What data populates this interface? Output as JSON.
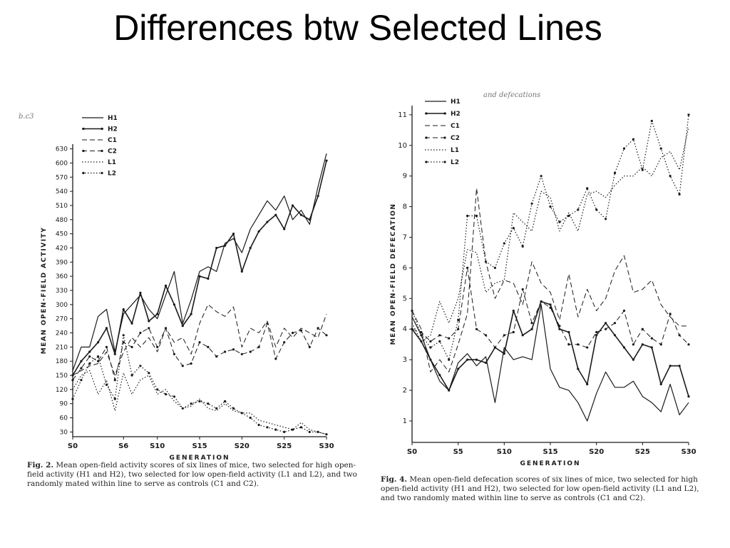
{
  "slide": {
    "title": "Differences btw Selected Lines"
  },
  "left_figure": {
    "caption_label": "Fig. 2.",
    "caption_text": "Mean open-field activity scores of six lines of mice, two selected for high open-field activity (H1 and H2), two selected for low open-field activity (L1 and L2), and two randomly mated within line to serve as controls (C1 and C2).",
    "scan_note": "b.c3"
  },
  "right_figure": {
    "caption_label": "Fig. 4.",
    "caption_text": "Mean open-field defecation scores of six lines of mice, two selected for high open-field activity (H1 and H2), two selected for low open-field activity (L1 and L2), and two randomly mated within line to serve as controls (C1 and C2).",
    "scan_note": "and defecations"
  },
  "chart_data": [
    {
      "type": "line",
      "title": "",
      "xlabel": "GENERATION",
      "ylabel": "MEAN OPEN-FIELD ACTIVITY",
      "xlim": [
        0,
        30
      ],
      "ylim": [
        20,
        640
      ],
      "xticks": [
        0,
        6,
        10,
        15,
        20,
        25,
        30
      ],
      "xtick_labels": [
        "S0",
        "S6",
        "S10",
        "S15",
        "S20",
        "S25",
        "S30"
      ],
      "yticks": [
        30,
        60,
        90,
        120,
        150,
        180,
        210,
        240,
        270,
        300,
        330,
        360,
        390,
        420,
        450,
        480,
        510,
        540,
        570,
        600,
        630
      ],
      "legend_position": "top-left",
      "x": [
        0,
        1,
        2,
        3,
        4,
        5,
        6,
        7,
        8,
        9,
        10,
        11,
        12,
        13,
        14,
        15,
        16,
        17,
        18,
        19,
        20,
        21,
        22,
        23,
        24,
        25,
        26,
        27,
        28,
        29,
        30
      ],
      "series": [
        {
          "name": "H1",
          "style": "solid",
          "values": [
            160,
            210,
            210,
            275,
            290,
            200,
            280,
            300,
            320,
            290,
            270,
            320,
            370,
            260,
            310,
            370,
            380,
            370,
            430,
            440,
            410,
            460,
            490,
            520,
            500,
            530,
            480,
            500,
            470,
            550,
            620
          ]
        },
        {
          "name": "H2",
          "style": "solid-dots",
          "values": [
            150,
            180,
            200,
            220,
            250,
            195,
            290,
            260,
            325,
            265,
            280,
            340,
            300,
            255,
            280,
            360,
            355,
            420,
            425,
            450,
            370,
            420,
            455,
            475,
            490,
            460,
            510,
            490,
            480,
            530,
            605
          ]
        },
        {
          "name": "C1",
          "style": "dashed",
          "values": [
            150,
            160,
            170,
            175,
            200,
            150,
            200,
            230,
            210,
            230,
            200,
            250,
            220,
            230,
            195,
            260,
            300,
            285,
            275,
            295,
            210,
            250,
            240,
            265,
            210,
            250,
            230,
            250,
            240,
            230,
            280
          ]
        },
        {
          "name": "C2",
          "style": "dashed-dots",
          "values": [
            140,
            165,
            190,
            180,
            210,
            140,
            220,
            210,
            240,
            250,
            210,
            250,
            195,
            170,
            175,
            220,
            210,
            190,
            200,
            205,
            195,
            200,
            210,
            260,
            185,
            220,
            240,
            245,
            210,
            250,
            235
          ]
        },
        {
          "name": "L1",
          "style": "dotted",
          "values": [
            120,
            150,
            160,
            110,
            140,
            75,
            155,
            110,
            140,
            150,
            110,
            120,
            95,
            80,
            85,
            100,
            80,
            75,
            90,
            75,
            70,
            70,
            55,
            50,
            45,
            40,
            35,
            50,
            35,
            30,
            25
          ]
        },
        {
          "name": "L2",
          "style": "dotted-dots",
          "values": [
            100,
            140,
            175,
            190,
            130,
            100,
            235,
            150,
            170,
            155,
            120,
            110,
            105,
            80,
            90,
            95,
            90,
            80,
            95,
            80,
            70,
            60,
            45,
            40,
            35,
            30,
            35,
            40,
            30,
            30,
            25
          ]
        }
      ]
    },
    {
      "type": "line",
      "title": "",
      "xlabel": "GENERATION",
      "ylabel": "MEAN OPEN-FIELD DEFECATION",
      "xlim": [
        0,
        30
      ],
      "ylim": [
        0.3,
        11.3
      ],
      "xticks": [
        0,
        5,
        10,
        15,
        20,
        25,
        30
      ],
      "xtick_labels": [
        "S0",
        "S5",
        "S10",
        "S15",
        "S20",
        "S25",
        "S30"
      ],
      "yticks": [
        1,
        2,
        3,
        4,
        5,
        6,
        7,
        8,
        9,
        10,
        11
      ],
      "legend_position": "top-left",
      "x": [
        0,
        1,
        2,
        3,
        4,
        5,
        6,
        7,
        8,
        9,
        10,
        11,
        12,
        13,
        14,
        15,
        16,
        17,
        18,
        19,
        20,
        21,
        22,
        23,
        24,
        25,
        26,
        27,
        28,
        29,
        30
      ],
      "series": [
        {
          "name": "H1",
          "style": "solid",
          "values": [
            4.4,
            3.8,
            3.0,
            2.3,
            2.0,
            2.9,
            3.2,
            2.8,
            3.1,
            1.6,
            3.4,
            3.0,
            3.1,
            3.0,
            4.8,
            2.7,
            2.1,
            2.0,
            1.6,
            1.0,
            1.9,
            2.6,
            2.1,
            2.1,
            2.3,
            1.8,
            1.6,
            1.3,
            2.2,
            1.2,
            1.6
          ]
        },
        {
          "name": "H2",
          "style": "solid-dots",
          "values": [
            4.0,
            3.6,
            3.0,
            2.5,
            2.0,
            2.7,
            3.0,
            3.0,
            2.9,
            3.4,
            3.2,
            4.6,
            3.8,
            4.0,
            4.9,
            4.8,
            4.0,
            3.9,
            2.7,
            2.2,
            3.8,
            4.2,
            3.8,
            3.4,
            3.0,
            3.5,
            3.4,
            2.2,
            2.8,
            2.8,
            1.8
          ]
        },
        {
          "name": "C1",
          "style": "dashed",
          "values": [
            4.6,
            4.0,
            2.6,
            3.0,
            2.6,
            3.5,
            4.5,
            8.6,
            6.2,
            5.0,
            5.6,
            5.5,
            4.8,
            6.2,
            5.5,
            5.2,
            4.3,
            5.8,
            4.4,
            5.3,
            4.6,
            5.0,
            5.9,
            6.4,
            5.2,
            5.3,
            5.6,
            4.8,
            4.4,
            4.1,
            4.1
          ]
        },
        {
          "name": "C2",
          "style": "dashed-dots",
          "values": [
            4.0,
            3.9,
            3.6,
            3.8,
            3.7,
            4.0,
            6.0,
            4.0,
            3.8,
            3.4,
            3.8,
            3.9,
            5.3,
            4.2,
            4.9,
            4.7,
            4.1,
            3.5,
            3.5,
            3.4,
            3.9,
            4.0,
            4.2,
            4.6,
            3.5,
            4.0,
            3.7,
            3.5,
            4.5,
            3.8,
            3.5
          ]
        },
        {
          "name": "L1",
          "style": "dotted",
          "values": [
            4.2,
            3.6,
            3.8,
            4.9,
            4.2,
            5.0,
            6.6,
            6.5,
            5.2,
            5.5,
            5.6,
            7.8,
            7.5,
            7.2,
            8.5,
            8.3,
            7.2,
            7.8,
            7.2,
            8.4,
            8.5,
            8.3,
            8.7,
            9.0,
            9.0,
            9.3,
            9.0,
            9.6,
            9.8,
            9.2,
            10.6
          ]
        },
        {
          "name": "L2",
          "style": "dotted-dots",
          "values": [
            4.6,
            3.8,
            3.4,
            3.6,
            3.0,
            4.3,
            7.7,
            7.7,
            6.2,
            6.0,
            6.8,
            7.3,
            6.7,
            8.1,
            9.0,
            8.0,
            7.5,
            7.7,
            7.9,
            8.6,
            7.9,
            7.6,
            9.1,
            9.9,
            10.2,
            9.2,
            10.8,
            9.9,
            9.0,
            8.4,
            11.0
          ]
        }
      ]
    }
  ]
}
